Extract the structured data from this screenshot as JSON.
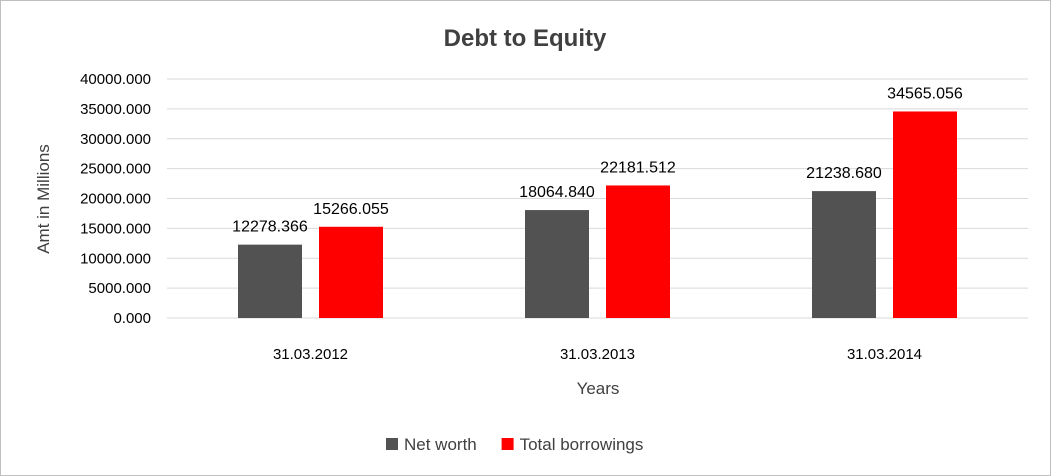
{
  "chart_data": {
    "type": "bar",
    "title": "Debt to Equity",
    "xlabel": "Years",
    "ylabel": "Amt in Millions",
    "categories": [
      "31.03.2012",
      "31.03.2013",
      "31.03.2014"
    ],
    "series": [
      {
        "name": "Net worth",
        "color": "#525252",
        "values": [
          12278.366,
          18064.84,
          21238.68
        ],
        "labels": [
          "12278.366",
          "18064.840",
          "21238.680"
        ]
      },
      {
        "name": "Total borrowings",
        "color": "#ff0000",
        "values": [
          15266.055,
          22181.512,
          34565.056
        ],
        "labels": [
          "15266.055",
          "22181.512",
          "34565.056"
        ]
      }
    ],
    "ylim": [
      0,
      40000
    ],
    "yticks": [
      "0.000",
      "5000.000",
      "10000.000",
      "15000.000",
      "20000.000",
      "25000.000",
      "30000.000",
      "35000.000",
      "40000.000"
    ],
    "grid": true,
    "legend": "bottom"
  }
}
